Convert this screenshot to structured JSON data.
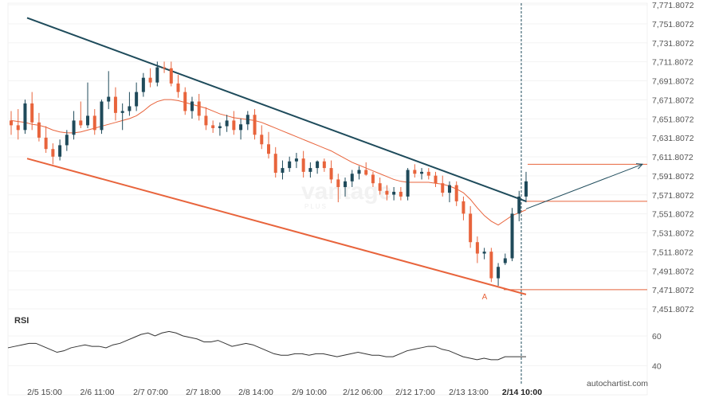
{
  "chart_data": {
    "type": "candlestick",
    "price_axis": {
      "ticks": [
        "7,771.8072",
        "7,751.8072",
        "7,731.8072",
        "7,711.8072",
        "7,691.8072",
        "7,671.8072",
        "7,651.8072",
        "7,631.8072",
        "7,611.8072",
        "7,591.8072",
        "7,571.8072",
        "7,551.8072",
        "7,531.8072",
        "7,511.8072",
        "7,491.8072",
        "7,471.8072",
        "7,451.8072"
      ],
      "range": [
        7445,
        7776
      ]
    },
    "time_axis": {
      "ticks": [
        "2/5 15:00",
        "2/6 11:00",
        "2/7 07:00",
        "2/7 18:00",
        "2/8 14:00",
        "2/9 10:00",
        "2/12 06:00",
        "2/12 17:00",
        "2/13 13:00",
        "2/14 10:00"
      ],
      "highlighted": "2/14 10:00"
    },
    "candles": [
      [
        7650,
        7660,
        7635,
        7645
      ],
      [
        7645,
        7662,
        7630,
        7640
      ],
      [
        7640,
        7672,
        7636,
        7668
      ],
      [
        7668,
        7680,
        7640,
        7648
      ],
      [
        7648,
        7658,
        7628,
        7632
      ],
      [
        7632,
        7644,
        7616,
        7620
      ],
      [
        7620,
        7626,
        7604,
        7612
      ],
      [
        7612,
        7630,
        7608,
        7624
      ],
      [
        7624,
        7640,
        7618,
        7635
      ],
      [
        7635,
        7660,
        7630,
        7650
      ],
      [
        7650,
        7670,
        7642,
        7645
      ],
      [
        7645,
        7690,
        7642,
        7655
      ],
      [
        7655,
        7662,
        7635,
        7640
      ],
      [
        7640,
        7672,
        7636,
        7670
      ],
      [
        7670,
        7702,
        7662,
        7675
      ],
      [
        7675,
        7685,
        7650,
        7658
      ],
      [
        7658,
        7668,
        7640,
        7660
      ],
      [
        7660,
        7680,
        7655,
        7665
      ],
      [
        7665,
        7690,
        7660,
        7680
      ],
      [
        7680,
        7700,
        7675,
        7695
      ],
      [
        7695,
        7705,
        7685,
        7690
      ],
      [
        7690,
        7712,
        7686,
        7706
      ],
      [
        7706,
        7712,
        7700,
        7705
      ],
      [
        7705,
        7712,
        7686,
        7689
      ],
      [
        7689,
        7698,
        7674,
        7680
      ],
      [
        7680,
        7685,
        7656,
        7660
      ],
      [
        7660,
        7675,
        7652,
        7670
      ],
      [
        7670,
        7678,
        7650,
        7655
      ],
      [
        7655,
        7664,
        7640,
        7645
      ],
      [
        7645,
        7650,
        7637,
        7642
      ],
      [
        7642,
        7648,
        7634,
        7644
      ],
      [
        7644,
        7656,
        7638,
        7650
      ],
      [
        7650,
        7660,
        7635,
        7640
      ],
      [
        7640,
        7652,
        7630,
        7646
      ],
      [
        7646,
        7660,
        7640,
        7656
      ],
      [
        7656,
        7662,
        7630,
        7635
      ],
      [
        7635,
        7645,
        7620,
        7625
      ],
      [
        7625,
        7638,
        7610,
        7615
      ],
      [
        7615,
        7622,
        7590,
        7595
      ],
      [
        7595,
        7608,
        7588,
        7600
      ],
      [
        7600,
        7612,
        7596,
        7607
      ],
      [
        7607,
        7616,
        7600,
        7610
      ],
      [
        7610,
        7618,
        7590,
        7596
      ],
      [
        7596,
        7606,
        7590,
        7600
      ],
      [
        7600,
        7608,
        7594,
        7607
      ],
      [
        7607,
        7610,
        7596,
        7600
      ],
      [
        7600,
        7608,
        7584,
        7588
      ],
      [
        7588,
        7594,
        7564,
        7580
      ],
      [
        7580,
        7590,
        7570,
        7586
      ],
      [
        7586,
        7598,
        7580,
        7594
      ],
      [
        7594,
        7602,
        7588,
        7598
      ],
      [
        7598,
        7606,
        7592,
        7593
      ],
      [
        7593,
        7596,
        7580,
        7584
      ],
      [
        7584,
        7590,
        7572,
        7576
      ],
      [
        7576,
        7582,
        7566,
        7572
      ],
      [
        7572,
        7580,
        7566,
        7575
      ],
      [
        7575,
        7580,
        7566,
        7570
      ],
      [
        7570,
        7600,
        7566,
        7598
      ],
      [
        7598,
        7604,
        7590,
        7594
      ],
      [
        7594,
        7600,
        7588,
        7596
      ],
      [
        7596,
        7600,
        7588,
        7592
      ],
      [
        7592,
        7596,
        7580,
        7584
      ],
      [
        7584,
        7592,
        7570,
        7574
      ],
      [
        7574,
        7586,
        7564,
        7582
      ],
      [
        7582,
        7586,
        7560,
        7565
      ],
      [
        7565,
        7570,
        7545,
        7552
      ],
      [
        7552,
        7560,
        7516,
        7522
      ],
      [
        7522,
        7528,
        7500,
        7510
      ],
      [
        7510,
        7516,
        7504,
        7512
      ],
      [
        7512,
        7516,
        7480,
        7484
      ],
      [
        7484,
        7500,
        7476,
        7496
      ],
      [
        7500,
        7510,
        7498,
        7505
      ],
      [
        7505,
        7558,
        7502,
        7552
      ],
      [
        7552,
        7576,
        7544,
        7570
      ],
      [
        7570,
        7596,
        7564,
        7586
      ]
    ],
    "moving_average": [
      7650,
      7649,
      7648,
      7646,
      7645,
      7643,
      7640,
      7638,
      7637,
      7637,
      7638,
      7640,
      7642,
      7644,
      7646,
      7648,
      7650,
      7652,
      7655,
      7660,
      7666,
      7670,
      7672,
      7672,
      7671,
      7669,
      7667,
      7665,
      7663,
      7660,
      7657,
      7655,
      7653,
      7652,
      7651,
      7650,
      7648,
      7645,
      7642,
      7639,
      7636,
      7633,
      7630,
      7627,
      7624,
      7621,
      7618,
      7614,
      7610,
      7606,
      7603,
      7600,
      7597,
      7594,
      7591,
      7588,
      7586,
      7585,
      7585,
      7585,
      7585,
      7584,
      7583,
      7581,
      7578,
      7574,
      7567,
      7558,
      7550,
      7544,
      7540,
      7545,
      7550,
      7553,
      7556
    ],
    "resistance_line": {
      "x0": 0,
      "y0": 7758,
      "x1": 74,
      "y1": 7565
    },
    "support_line": {
      "x0": 0,
      "y0": 7610,
      "x1": 74,
      "y1": 7467
    },
    "resistance_level": 7565,
    "support_level": 7472,
    "forecast_level": 7604,
    "point_label": "A",
    "rsi": {
      "label": "RSI",
      "ticks": [
        "60",
        "40"
      ],
      "range": [
        30,
        75
      ],
      "values": [
        52,
        53,
        54,
        55,
        55,
        53,
        51,
        49,
        50,
        52,
        53,
        54,
        53,
        53,
        52,
        54,
        55,
        57,
        59,
        61,
        62,
        60,
        62,
        63,
        62,
        60,
        59,
        58,
        56,
        56,
        57,
        55,
        53,
        54,
        55,
        54,
        52,
        50,
        48,
        47,
        47,
        48,
        48,
        47,
        48,
        48,
        47,
        46,
        47,
        48,
        49,
        48,
        47,
        47,
        46,
        46,
        48,
        50,
        51,
        52,
        53,
        53,
        51,
        50,
        48,
        46,
        45,
        44,
        45,
        44,
        44,
        46,
        46,
        46,
        46
      ]
    },
    "brand": "autochartist.com",
    "watermark": "vantage",
    "watermark_sub": "PLUS",
    "colors": {
      "up": "#1f4a5a",
      "down": "#e8643c",
      "resistance": "#1e4b5b",
      "support": "#e8643c",
      "ma": "#e8643c",
      "rsi": "#333333",
      "grid": "#e6e6e6"
    }
  }
}
